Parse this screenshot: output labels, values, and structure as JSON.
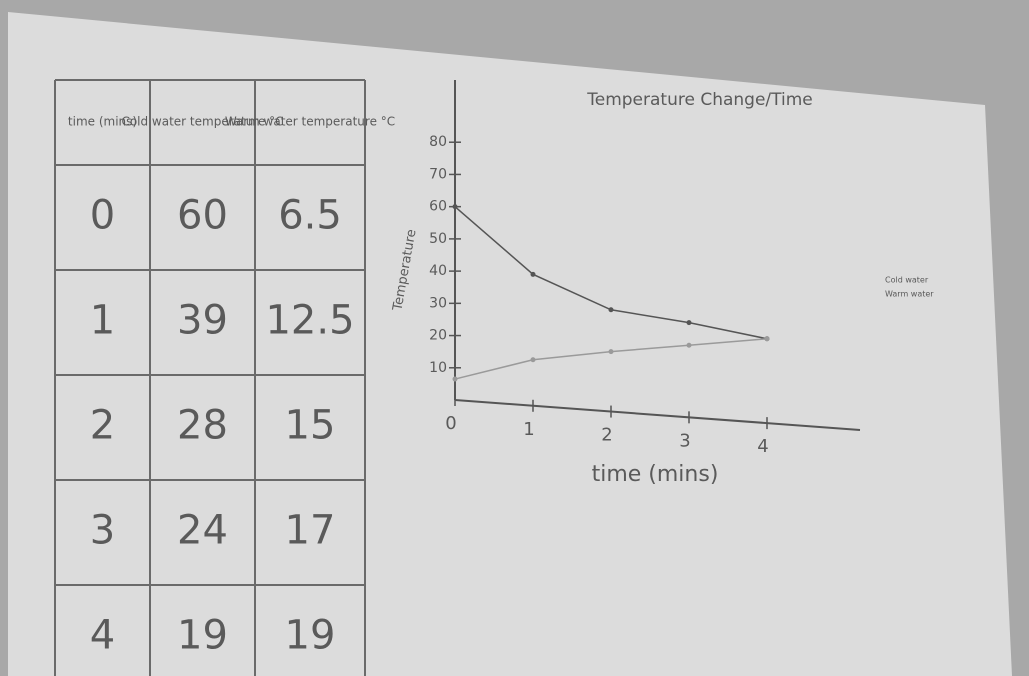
{
  "table": {
    "header": [
      "time (mins)",
      "Cold water temperature °C",
      "Warm water temperature °C"
    ],
    "rows": [
      [
        0,
        60,
        6.5
      ],
      [
        1,
        39,
        12.5
      ],
      [
        2,
        28,
        15
      ],
      [
        3,
        24,
        17
      ],
      [
        4,
        19,
        19
      ]
    ]
  },
  "chart_data": {
    "type": "line",
    "title": "Temperature Change/Time",
    "x_label": "time (mins)",
    "y_label": "Temperature",
    "x": [
      0,
      1,
      2,
      3,
      4
    ],
    "series": [
      {
        "name": "Cold water",
        "color": "#555555",
        "values": [
          60,
          39,
          28,
          24,
          19
        ]
      },
      {
        "name": "Warm water",
        "color": "#9a9a9a",
        "values": [
          6.5,
          12.5,
          15,
          17,
          19
        ]
      }
    ],
    "xlim": [
      0,
      5
    ],
    "ylim": [
      0,
      90
    ],
    "xticks": [
      0,
      1,
      2,
      3,
      4
    ],
    "yticks": [
      10,
      20,
      30,
      40,
      50,
      60,
      70,
      80
    ],
    "legend": "right"
  }
}
